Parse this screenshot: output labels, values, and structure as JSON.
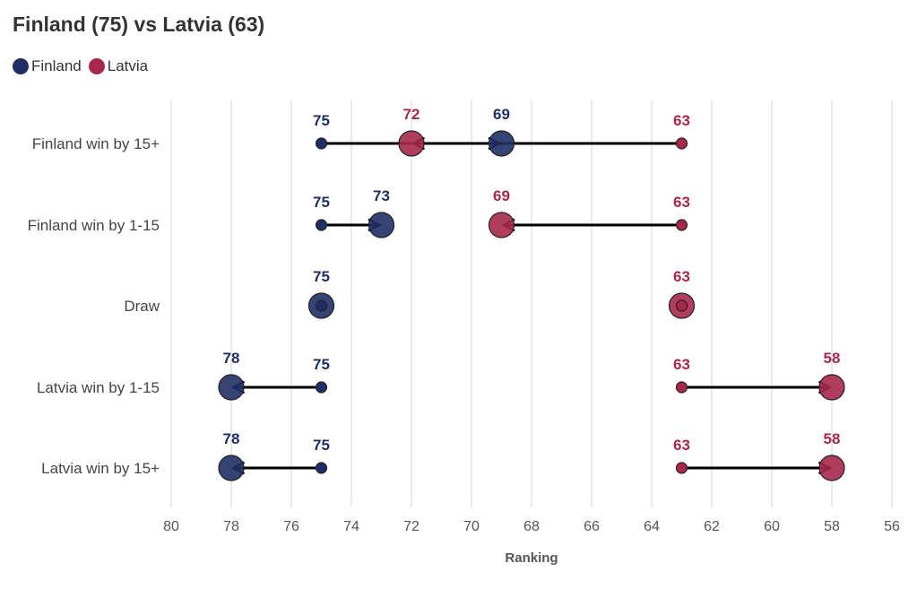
{
  "title": "Finland (75) vs Latvia (63)",
  "colors": {
    "finland": "#1f2f66",
    "latvia": "#a8284c",
    "arrow": "#000000",
    "grid": "#e3e3e3"
  },
  "chart_data": {
    "type": "dumbbell-arrow",
    "title": "Finland (75) vs Latvia (63)",
    "xlabel": "Ranking",
    "xlim": [
      80,
      56
    ],
    "xticks": [
      80,
      78,
      76,
      74,
      72,
      70,
      68,
      66,
      64,
      62,
      60,
      58,
      56
    ],
    "legend": [
      {
        "name": "Finland",
        "color": "#1f2f66"
      },
      {
        "name": "Latvia",
        "color": "#a8284c"
      }
    ],
    "categories": [
      "Finland win by 15+",
      "Finland win by 1-15",
      "Draw",
      "Latvia win by 1-15",
      "Latvia win by 15+"
    ],
    "series": [
      {
        "name": "Finland",
        "start": [
          75,
          75,
          75,
          75,
          75
        ],
        "end": [
          69,
          73,
          75,
          78,
          78
        ]
      },
      {
        "name": "Latvia",
        "start": [
          63,
          63,
          63,
          63,
          63
        ],
        "end": [
          72,
          69,
          63,
          58,
          58
        ]
      }
    ]
  }
}
